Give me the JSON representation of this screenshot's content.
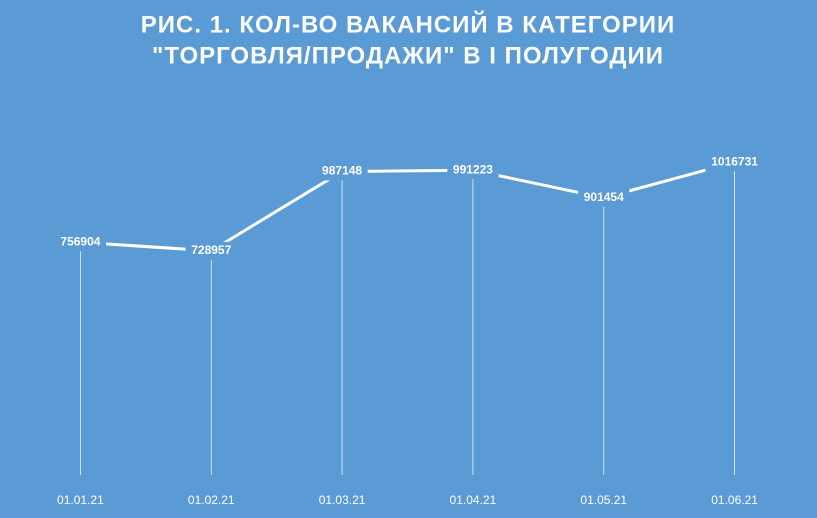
{
  "chart_data": {
    "type": "line",
    "title": [
      "РИС. 1. КОЛ-ВО ВАКАНСИЙ В КАТЕГОРИИ",
      "\"ТОРГОВЛЯ/ПРОДАЖИ\" В I ПОЛУГОДИИ"
    ],
    "categories": [
      "01.01.21",
      "01.02.21",
      "01.03.21",
      "01.04.21",
      "01.05.21",
      "01.06.21"
    ],
    "values": [
      756904,
      728957,
      987148,
      991223,
      901454,
      1016731
    ],
    "color": "#ffffff",
    "background": "#5b9bd5",
    "ylim": [
      0,
      1200000
    ],
    "drop_lines": true
  }
}
